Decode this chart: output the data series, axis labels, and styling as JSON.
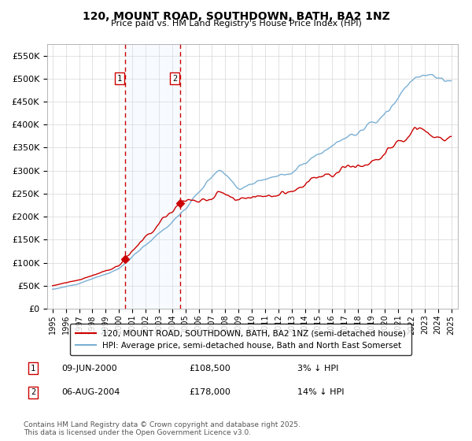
{
  "title": "120, MOUNT ROAD, SOUTHDOWN, BATH, BA2 1NZ",
  "subtitle": "Price paid vs. HM Land Registry's House Price Index (HPI)",
  "legend_line1": "120, MOUNT ROAD, SOUTHDOWN, BATH, BA2 1NZ (semi-detached house)",
  "legend_line2": "HPI: Average price, semi-detached house, Bath and North East Somerset",
  "footer": "Contains HM Land Registry data © Crown copyright and database right 2025.\nThis data is licensed under the Open Government Licence v3.0.",
  "sales": [
    {
      "date_num": 2000.44,
      "price": 108500,
      "label": "1",
      "date_str": "09-JUN-2000",
      "pct": "3%",
      "dir": "↓"
    },
    {
      "date_num": 2004.59,
      "price": 178000,
      "label": "2",
      "date_str": "06-AUG-2004",
      "pct": "14%",
      "dir": "↓"
    }
  ],
  "vline_color": "#cc0000",
  "vspan_color": "#ddeeff",
  "hpi_color": "#7aafd4",
  "property_color": "#cc0000",
  "ylim": [
    0,
    575000
  ],
  "yticks": [
    0,
    50000,
    100000,
    150000,
    200000,
    250000,
    300000,
    350000,
    400000,
    450000,
    500000,
    550000
  ],
  "xlim_start": 1994.6,
  "xlim_end": 2025.5
}
